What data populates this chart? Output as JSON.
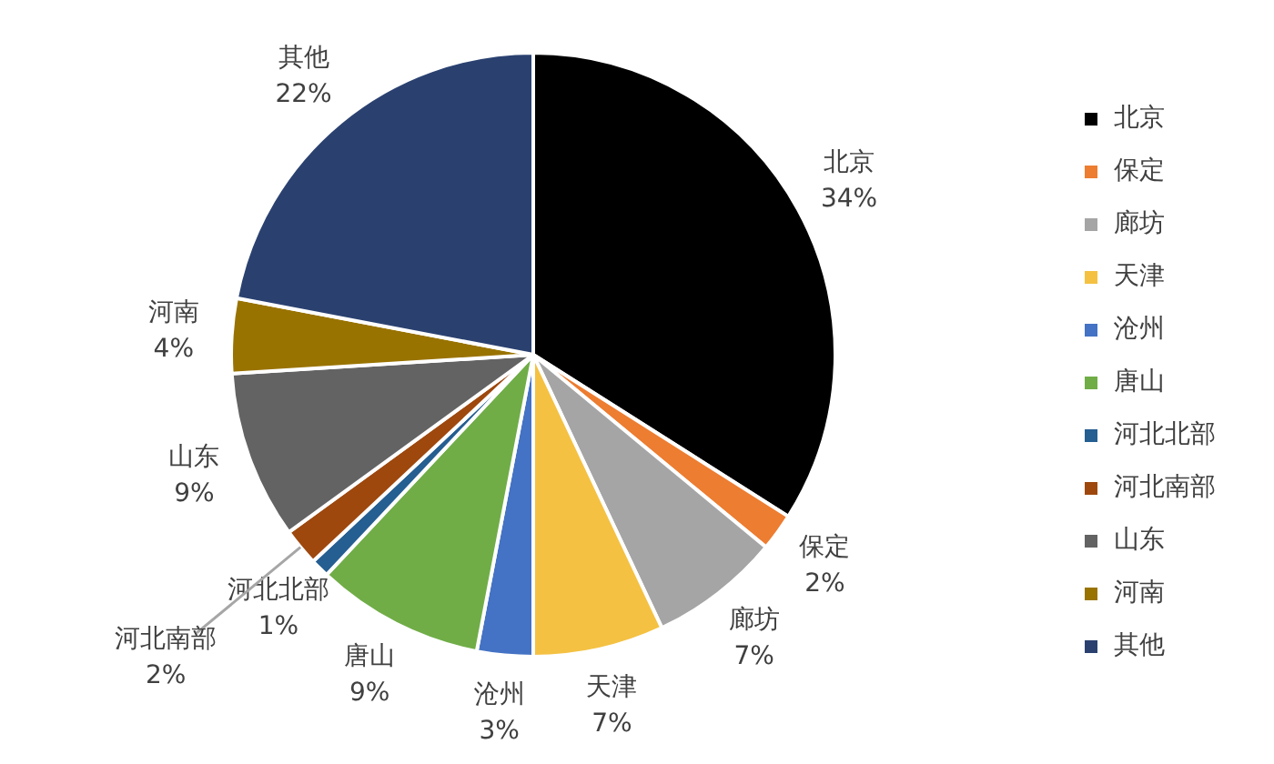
{
  "chart_data": {
    "type": "pie",
    "categories": [
      "北京",
      "保定",
      "廊坊",
      "天津",
      "沧州",
      "唐山",
      "河北北部",
      "河北南部",
      "山东",
      "河南",
      "其他"
    ],
    "values": [
      34,
      2,
      7,
      7,
      3,
      9,
      1,
      2,
      9,
      4,
      22
    ],
    "value_labels": [
      "34%",
      "2%",
      "7%",
      "7%",
      "3%",
      "9%",
      "1%",
      "2%",
      "9%",
      "4%",
      "22%"
    ],
    "colors": [
      "#000000",
      "#ed7d31",
      "#a5a5a5",
      "#f4c142",
      "#4472c4",
      "#70ad47",
      "#255e91",
      "#9e480e",
      "#636363",
      "#997300",
      "#2a4170"
    ],
    "legend": "right"
  }
}
